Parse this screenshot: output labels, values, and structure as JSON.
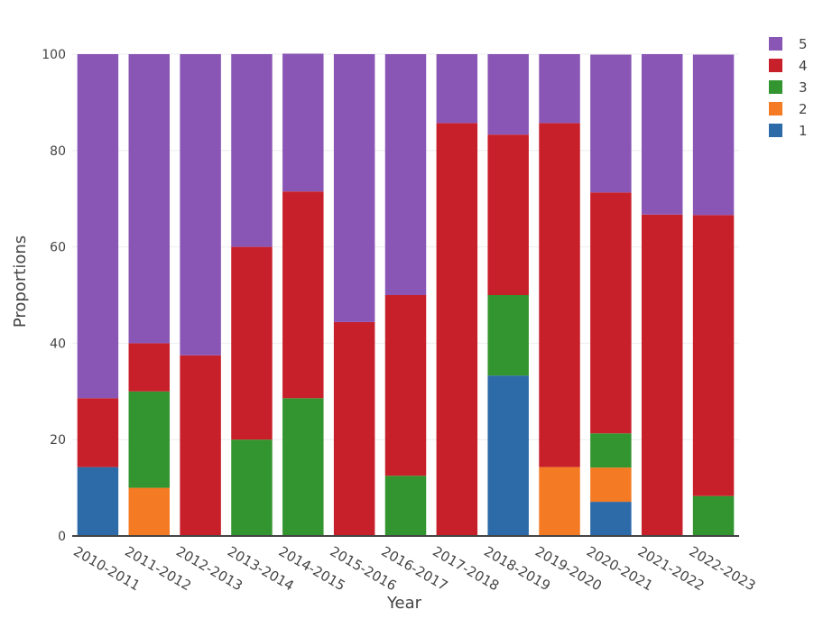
{
  "chart_data": {
    "type": "bar",
    "stacked": true,
    "title": "",
    "xlabel": "Year",
    "ylabel": "Proportions",
    "ylim": [
      0,
      100
    ],
    "yticks": [
      0,
      20,
      40,
      60,
      80,
      100
    ],
    "grid": true,
    "legend_position": "top-right",
    "categories": [
      "2010-2011",
      "2011-2012",
      "2012-2013",
      "2013-2014",
      "2014-2015",
      "2015-2016",
      "2016-2017",
      "2017-2018",
      "2018-2019",
      "2019-2020",
      "2020-2021",
      "2021-2022",
      "2022-2023"
    ],
    "series": [
      {
        "name": "1",
        "color": "#2d6aa8",
        "values": [
          14.3,
          0,
          0,
          0,
          0,
          0,
          0,
          0,
          33.3,
          0,
          7.1,
          0,
          0
        ]
      },
      {
        "name": "2",
        "color": "#f47a23",
        "values": [
          0,
          10,
          0,
          0,
          0,
          0,
          0,
          0,
          0,
          14.3,
          7.1,
          0,
          0
        ]
      },
      {
        "name": "3",
        "color": "#33952f",
        "values": [
          0,
          20,
          0,
          20,
          28.6,
          0,
          12.5,
          0,
          16.7,
          0,
          7.1,
          0,
          8.3
        ]
      },
      {
        "name": "4",
        "color": "#c8202a",
        "values": [
          14.3,
          10,
          37.5,
          40,
          42.9,
          44.4,
          37.5,
          85.7,
          33.3,
          71.4,
          50,
          66.7,
          58.3
        ]
      },
      {
        "name": "5",
        "color": "#8a56b6",
        "values": [
          71.4,
          60,
          62.5,
          40,
          28.6,
          55.6,
          50,
          14.3,
          16.7,
          14.3,
          28.6,
          33.3,
          33.3
        ]
      }
    ]
  }
}
